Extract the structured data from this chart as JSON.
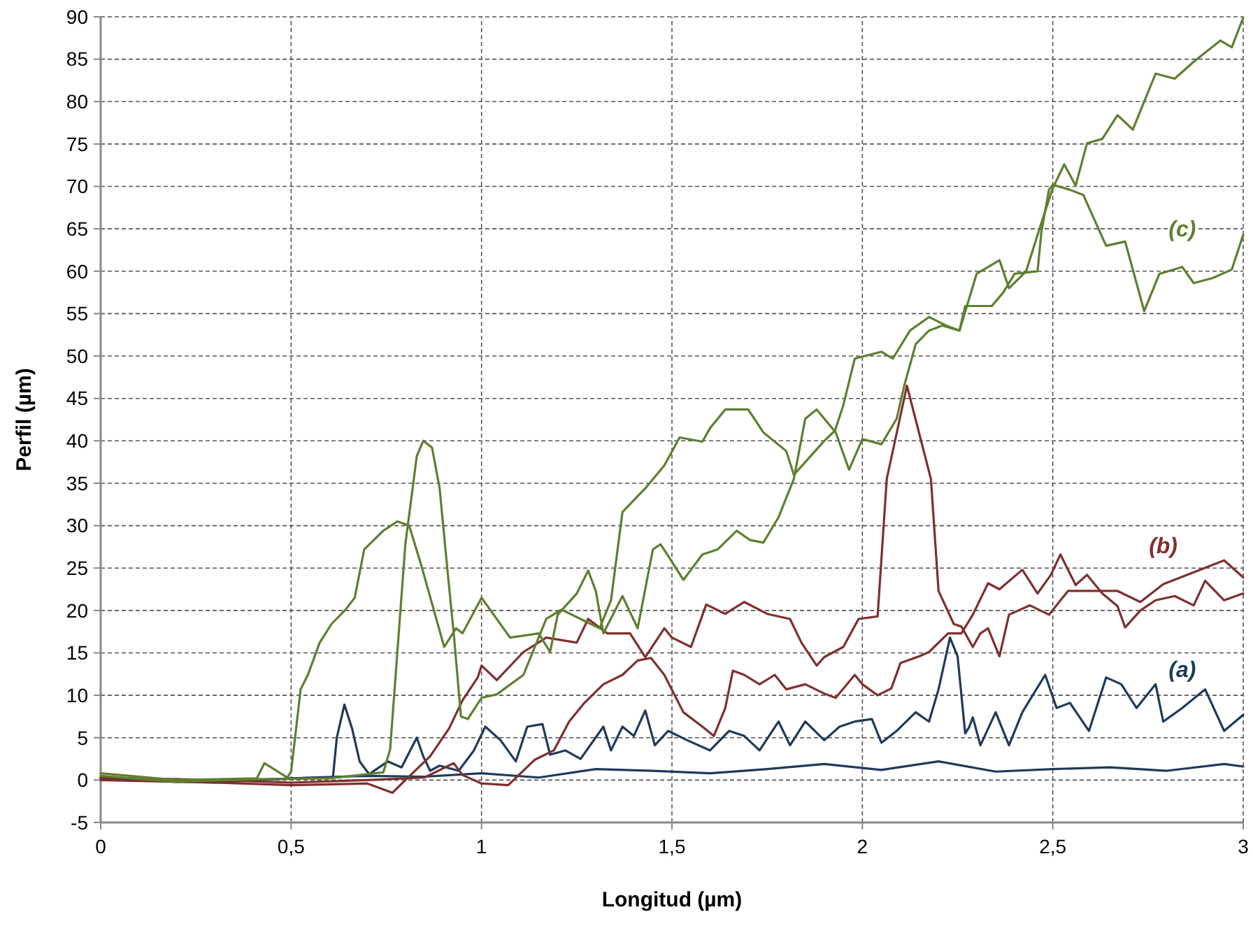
{
  "chart_data": {
    "type": "line",
    "xlabel": "Longitud (µm)",
    "ylabel": "Perfil (µm)",
    "xlim": [
      0,
      3
    ],
    "ylim": [
      -5,
      90
    ],
    "xticks": [
      0,
      {
        "value": 0.5,
        "label": "0,5"
      },
      1,
      {
        "value": 1.5,
        "label": "1,5"
      },
      2,
      {
        "value": 2.5,
        "label": "2,5"
      },
      3
    ],
    "yticks": [
      -5,
      0,
      5,
      10,
      15,
      20,
      25,
      30,
      35,
      40,
      45,
      50,
      55,
      60,
      65,
      70,
      75,
      80,
      85,
      90
    ],
    "grid": true,
    "series": [
      {
        "color": "#1f3a5a",
        "x": [
          0,
          0.2,
          0.4,
          0.55,
          0.7,
          0.85,
          1.0,
          1.15,
          1.3,
          1.45,
          1.6,
          1.75,
          1.9,
          2.05,
          2.2,
          2.35,
          2.5,
          2.65,
          2.8,
          2.95,
          3.0
        ],
        "values": [
          0.3,
          -0.2,
          0,
          0.3,
          0.5,
          0.4,
          0.8,
          0.3,
          1.3,
          1.1,
          0.8,
          1.3,
          1.9,
          1.2,
          2.2,
          1.0,
          1.3,
          1.5,
          1.1,
          1.9,
          1.6
        ]
      },
      {
        "name": "(a)",
        "color": "#1f3a5a",
        "x": [
          0,
          0.3,
          0.5,
          0.6,
          0.61,
          0.62,
          0.64,
          0.66,
          0.68,
          0.705,
          0.754,
          0.79,
          0.83,
          0.847,
          0.865,
          0.89,
          0.94,
          0.98,
          1.01,
          1.05,
          1.09,
          1.12,
          1.16,
          1.18,
          1.22,
          1.26,
          1.32,
          1.34,
          1.37,
          1.4,
          1.43,
          1.455,
          1.49,
          1.54,
          1.6,
          1.65,
          1.69,
          1.73,
          1.78,
          1.81,
          1.85,
          1.9,
          1.94,
          1.98,
          2.025,
          2.05,
          2.09,
          2.14,
          2.175,
          2.2,
          2.23,
          2.25,
          2.27,
          2.28,
          2.29,
          2.31,
          2.35,
          2.385,
          2.42,
          2.48,
          2.51,
          2.545,
          2.595,
          2.64,
          2.68,
          2.72,
          2.77,
          2.79,
          2.84,
          2.9,
          2.95,
          3.0
        ],
        "values": [
          0.2,
          -0.3,
          0.2,
          0.3,
          0.4,
          5,
          8.9,
          6.1,
          2.2,
          0.7,
          2.2,
          1.5,
          5,
          2.8,
          1.1,
          1.7,
          1.1,
          3.5,
          6.3,
          4.7,
          2.2,
          6.3,
          6.6,
          3,
          3.5,
          2.5,
          6.3,
          3.5,
          6.3,
          5.2,
          8.2,
          4.1,
          5.8,
          4.7,
          3.5,
          5.8,
          5.2,
          3.5,
          6.9,
          4.1,
          6.9,
          4.7,
          6.3,
          6.9,
          7.2,
          4.4,
          5.8,
          8,
          6.9,
          10.7,
          16.8,
          14.6,
          5.5,
          6.2,
          7.4,
          4.1,
          8,
          4.1,
          8,
          12.4,
          8.5,
          9.1,
          5.8,
          12.1,
          11.3,
          8.5,
          11.3,
          6.9,
          8.5,
          10.7,
          5.8,
          7.7
        ]
      },
      {
        "name": "(b)",
        "color": "#7f2f2f",
        "x": [
          0,
          0.3,
          0.5,
          0.7,
          0.766,
          0.8,
          0.865,
          0.915,
          0.95,
          0.99,
          1.0,
          1.04,
          1.11,
          1.17,
          1.25,
          1.28,
          1.33,
          1.39,
          1.43,
          1.48,
          1.5,
          1.55,
          1.59,
          1.64,
          1.69,
          1.75,
          1.81,
          1.84,
          1.88,
          1.9,
          1.95,
          1.99,
          2.04,
          2.064,
          2.117,
          2.18,
          2.2,
          2.24,
          2.26,
          2.29,
          2.31,
          2.33,
          2.36,
          2.385,
          2.44,
          2.49,
          2.54,
          2.6,
          2.67,
          2.73,
          2.79,
          2.87,
          2.95,
          3.0
        ],
        "values": [
          0,
          -0.3,
          -0.6,
          -0.4,
          -1.5,
          0,
          2.8,
          6.1,
          9.4,
          12.1,
          13.5,
          11.8,
          15.1,
          16.8,
          16.2,
          19,
          17.3,
          17.3,
          14.5,
          17.9,
          16.8,
          15.7,
          20.7,
          19.6,
          21,
          19.6,
          19,
          16.2,
          13.5,
          14.5,
          15.7,
          19,
          19.3,
          35.5,
          46.5,
          35.5,
          22.3,
          18.4,
          18.1,
          15.7,
          17.3,
          17.9,
          14.6,
          19.5,
          20.6,
          19.5,
          22.3,
          22.3,
          22.3,
          21,
          23.1,
          24.5,
          25.9,
          23.9
        ]
      },
      {
        "color": "#7f2f2f",
        "x": [
          0,
          0.3,
          0.5,
          0.7,
          0.85,
          0.927,
          0.95,
          1.0,
          1.07,
          1.14,
          1.19,
          1.23,
          1.27,
          1.32,
          1.37,
          1.41,
          1.445,
          1.48,
          1.53,
          1.58,
          1.61,
          1.64,
          1.66,
          1.69,
          1.73,
          1.77,
          1.8,
          1.85,
          1.9,
          1.93,
          1.98,
          2.0,
          2.04,
          2.076,
          2.1,
          2.15,
          2.175,
          2.225,
          2.26,
          2.29,
          2.33,
          2.36,
          2.42,
          2.46,
          2.495,
          2.52,
          2.56,
          2.59,
          2.63,
          2.67,
          2.69,
          2.73,
          2.77,
          2.82,
          2.87,
          2.9,
          2.95,
          3.0
        ],
        "values": [
          0.3,
          0,
          -0.3,
          0,
          0.3,
          2,
          0.6,
          -0.4,
          -0.6,
          2.4,
          3.5,
          6.9,
          9.1,
          11.3,
          12.4,
          14.1,
          14.4,
          12.4,
          8,
          6.3,
          5.2,
          8.5,
          12.9,
          12.4,
          11.3,
          12.4,
          10.7,
          11.3,
          10.2,
          9.7,
          12.4,
          11.3,
          10,
          10.8,
          13.8,
          14.6,
          15.1,
          17.3,
          17.3,
          19.5,
          23.2,
          22.5,
          24.8,
          22,
          24.2,
          26.6,
          23,
          24.2,
          22,
          20.5,
          18,
          20,
          21.2,
          21.7,
          20.6,
          23.5,
          21.2,
          22
        ]
      },
      {
        "name": "(c)",
        "color": "#5f7f30",
        "x": [
          0,
          0.2,
          0.41,
          0.43,
          0.49,
          0.5,
          0.525,
          0.544,
          0.575,
          0.606,
          0.643,
          0.667,
          0.692,
          0.742,
          0.779,
          0.81,
          0.84,
          0.902,
          0.933,
          0.95,
          1.0,
          1.075,
          1.15,
          1.18,
          1.2,
          1.25,
          1.28,
          1.3,
          1.32,
          1.37,
          1.41,
          1.45,
          1.47,
          1.495,
          1.53,
          1.58,
          1.62,
          1.67,
          1.705,
          1.74,
          1.78,
          1.82,
          1.85,
          1.88,
          1.93,
          1.965,
          2.0,
          2.05,
          2.09,
          2.11,
          2.14,
          2.175,
          2.21,
          2.255,
          2.27,
          2.34,
          2.37,
          2.4,
          2.46,
          2.47,
          2.49,
          2.5,
          2.545,
          2.58,
          2.64,
          2.69,
          2.74,
          2.78,
          2.84,
          2.87,
          2.92,
          2.97,
          3.0
        ],
        "values": [
          0.8,
          0,
          0.2,
          2,
          0.3,
          1,
          10.7,
          12.4,
          16.2,
          18.4,
          20.1,
          21.5,
          27.2,
          29.4,
          30.5,
          30,
          25.6,
          15.7,
          17.9,
          17.3,
          21.5,
          16.8,
          17.3,
          15.1,
          19.5,
          22,
          24.7,
          22.3,
          17.3,
          21.7,
          17.9,
          27.2,
          27.8,
          26.1,
          23.6,
          26.6,
          27.2,
          29.4,
          28.3,
          28,
          31,
          35.5,
          42.6,
          43.7,
          41,
          36.6,
          40.2,
          39.6,
          42.6,
          46.5,
          51.4,
          53,
          53.6,
          53,
          55.9,
          55.9,
          57.5,
          59.7,
          60,
          64.6,
          69.6,
          70.2,
          69.6,
          69,
          63,
          63.5,
          55.3,
          59.7,
          60.5,
          58.6,
          59.2,
          60.2,
          64.3
        ]
      },
      {
        "color": "#5f7f30",
        "x": [
          0,
          0.2,
          0.4,
          0.6,
          0.742,
          0.76,
          0.78,
          0.8,
          0.83,
          0.847,
          0.87,
          0.89,
          0.91,
          0.927,
          0.946,
          0.964,
          1.0,
          1.04,
          1.11,
          1.17,
          1.21,
          1.26,
          1.31,
          1.34,
          1.37,
          1.43,
          1.48,
          1.52,
          1.58,
          1.6,
          1.64,
          1.7,
          1.74,
          1.8,
          1.82,
          1.86,
          1.9,
          1.928,
          1.95,
          1.98,
          2.05,
          2.08,
          2.125,
          2.175,
          2.22,
          2.255,
          2.3,
          2.36,
          2.385,
          2.43,
          2.47,
          2.5,
          2.53,
          2.56,
          2.59,
          2.63,
          2.67,
          2.71,
          2.77,
          2.82,
          2.87,
          2.94,
          2.97,
          3.0
        ],
        "values": [
          0.5,
          -0.2,
          0.1,
          0.2,
          0.9,
          3.6,
          15.7,
          27.8,
          38.2,
          40,
          39.2,
          34.4,
          25,
          17.3,
          7.5,
          7.2,
          9.7,
          10.1,
          12.4,
          19,
          20.1,
          19,
          17.9,
          21.2,
          31.6,
          34.4,
          37.1,
          40.4,
          39.9,
          41.5,
          43.7,
          43.7,
          41,
          38.8,
          36,
          38,
          40,
          41.2,
          44.2,
          49.7,
          50.5,
          49.7,
          53,
          54.6,
          53.6,
          53,
          59.7,
          61.3,
          58,
          60,
          65.7,
          69.8,
          72.6,
          70.1,
          75.1,
          75.6,
          78.4,
          76.7,
          83.3,
          82.7,
          84.7,
          87.2,
          86.4,
          89.9
        ]
      }
    ]
  }
}
